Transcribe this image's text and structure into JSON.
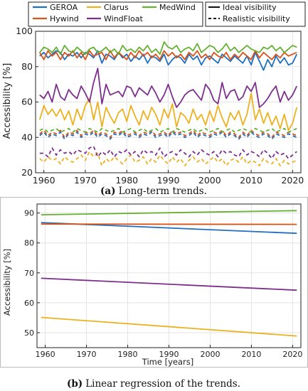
{
  "chart_data": [
    {
      "type": "line",
      "caption_tag": "(a)",
      "caption": "Long-term trends.",
      "ylabel": "Accessibility [%]",
      "xlabel": "",
      "xlim": [
        1958,
        2022
      ],
      "ylim": [
        20,
        100
      ],
      "xticks": [
        1960,
        1970,
        1980,
        1990,
        2000,
        2010,
        2020
      ],
      "yticks": [
        20,
        40,
        60,
        80,
        100
      ],
      "grid": true,
      "legend_position": "top",
      "legend": [
        {
          "name": "GEROA",
          "color": "#1f6fc0"
        },
        {
          "name": "Hywind",
          "color": "#d95319"
        },
        {
          "name": "Clarus",
          "color": "#edb120"
        },
        {
          "name": "WindFloat",
          "color": "#7e2f8e"
        },
        {
          "name": "MedWind",
          "color": "#66b032"
        }
      ],
      "style_legend": [
        {
          "name": "Ideal visibility",
          "dash": "solid"
        },
        {
          "name": "Realistic visibility",
          "dash": "dashed"
        }
      ],
      "x": [
        1959,
        1960,
        1961,
        1962,
        1963,
        1964,
        1965,
        1966,
        1967,
        1968,
        1969,
        1970,
        1971,
        1972,
        1973,
        1974,
        1975,
        1976,
        1977,
        1978,
        1979,
        1980,
        1981,
        1982,
        1983,
        1984,
        1985,
        1986,
        1987,
        1988,
        1989,
        1990,
        1991,
        1992,
        1993,
        1994,
        1995,
        1996,
        1997,
        1998,
        1999,
        2000,
        2001,
        2002,
        2003,
        2004,
        2005,
        2006,
        2007,
        2008,
        2009,
        2010,
        2011,
        2012,
        2013,
        2014,
        2015,
        2016,
        2017,
        2018,
        2019,
        2020,
        2021
      ],
      "series": [
        {
          "name": "GEROA",
          "visibility": "Ideal visibility",
          "color": "#1f6fc0",
          "values": [
            86,
            88,
            85,
            87,
            89,
            88,
            84,
            87,
            86,
            88,
            85,
            88,
            87,
            85,
            89,
            82,
            87,
            86,
            84,
            88,
            85,
            87,
            83,
            86,
            84,
            87,
            82,
            86,
            85,
            83,
            87,
            81,
            84,
            86,
            85,
            82,
            87,
            84,
            86,
            81,
            85,
            86,
            84,
            82,
            87,
            85,
            83,
            86,
            84,
            82,
            86,
            81,
            88,
            83,
            78,
            84,
            80,
            86,
            82,
            85,
            81,
            82,
            87
          ],
          "dash": "solid"
        },
        {
          "name": "Hywind",
          "visibility": "Ideal visibility",
          "color": "#d95319",
          "values": [
            88,
            84,
            89,
            86,
            88,
            84,
            88,
            86,
            89,
            85,
            88,
            84,
            89,
            86,
            87,
            88,
            84,
            89,
            85,
            88,
            86,
            84,
            88,
            85,
            89,
            86,
            88,
            85,
            87,
            84,
            89,
            86,
            88,
            85,
            87,
            84,
            88,
            86,
            89,
            85,
            87,
            84,
            88,
            86,
            85,
            88,
            84,
            87,
            85,
            88,
            86,
            84,
            89,
            85,
            88,
            86,
            84,
            87,
            85,
            88,
            86,
            87,
            88
          ],
          "dash": "solid"
        },
        {
          "name": "Clarus",
          "visibility": "Ideal visibility",
          "color": "#edb120",
          "values": [
            50,
            58,
            53,
            56,
            52,
            56,
            50,
            55,
            47,
            56,
            50,
            58,
            62,
            50,
            60,
            46,
            57,
            52,
            48,
            54,
            56,
            49,
            58,
            52,
            47,
            55,
            50,
            57,
            53,
            47,
            56,
            51,
            59,
            46,
            54,
            52,
            48,
            56,
            50,
            53,
            47,
            55,
            49,
            58,
            51,
            46,
            54,
            50,
            55,
            47,
            53,
            65,
            50,
            56,
            48,
            54,
            47,
            52,
            45,
            53,
            44,
            48,
            57
          ],
          "dash": "solid"
        },
        {
          "name": "WindFloat",
          "visibility": "Ideal visibility",
          "color": "#7e2f8e",
          "values": [
            64,
            62,
            66,
            60,
            70,
            63,
            61,
            67,
            64,
            62,
            69,
            65,
            60,
            71,
            79,
            59,
            70,
            64,
            65,
            66,
            63,
            69,
            68,
            63,
            68,
            66,
            64,
            69,
            65,
            60,
            64,
            70,
            63,
            57,
            60,
            64,
            66,
            67,
            64,
            61,
            70,
            67,
            61,
            59,
            71,
            62,
            66,
            67,
            61,
            63,
            69,
            66,
            71,
            57,
            59,
            62,
            66,
            69,
            60,
            66,
            61,
            64,
            69
          ],
          "dash": "solid"
        },
        {
          "name": "MedWind",
          "visibility": "Ideal visibility",
          "color": "#66b032",
          "values": [
            88,
            91,
            90,
            88,
            91,
            87,
            92,
            89,
            88,
            91,
            89,
            87,
            90,
            91,
            88,
            89,
            91,
            88,
            90,
            87,
            92,
            89,
            90,
            88,
            91,
            89,
            92,
            88,
            90,
            87,
            94,
            91,
            90,
            92,
            88,
            90,
            91,
            89,
            93,
            88,
            90,
            92,
            91,
            88,
            90,
            93,
            89,
            91,
            88,
            90,
            92,
            90,
            89,
            88,
            91,
            90,
            92,
            89,
            91,
            88,
            90,
            92,
            91
          ],
          "dash": "solid"
        },
        {
          "name": "GEROA",
          "visibility": "Realistic visibility",
          "color": "#1f6fc0",
          "values": [
            41,
            43,
            40,
            42,
            41,
            43,
            39,
            42,
            41,
            43,
            40,
            42,
            41,
            43,
            40,
            42,
            41,
            39,
            42,
            41,
            43,
            40,
            41,
            42,
            40,
            42,
            41,
            43,
            40,
            41,
            42,
            40,
            43,
            41,
            42,
            40,
            41,
            43,
            40,
            42,
            41,
            40,
            42,
            41,
            43,
            40,
            42,
            41,
            39,
            42,
            40,
            43,
            41,
            40,
            42,
            41,
            39,
            42,
            41,
            40,
            42,
            41,
            40
          ],
          "dash": "dashed"
        },
        {
          "name": "Hywind",
          "visibility": "Realistic visibility",
          "color": "#d95319",
          "values": [
            42,
            44,
            41,
            43,
            42,
            44,
            40,
            43,
            42,
            44,
            41,
            43,
            42,
            44,
            41,
            43,
            42,
            40,
            43,
            42,
            44,
            41,
            42,
            43,
            41,
            43,
            42,
            44,
            41,
            42,
            43,
            41,
            44,
            42,
            43,
            41,
            42,
            44,
            41,
            43,
            42,
            41,
            43,
            42,
            44,
            41,
            43,
            42,
            40,
            43,
            41,
            44,
            42,
            41,
            43,
            42,
            40,
            43,
            42,
            41,
            43,
            42,
            41
          ],
          "dash": "dashed"
        },
        {
          "name": "Clarus",
          "visibility": "Realistic visibility",
          "color": "#edb120",
          "values": [
            28,
            26,
            29,
            27,
            28,
            25,
            29,
            27,
            26,
            28,
            30,
            27,
            32,
            29,
            31,
            24,
            28,
            26,
            29,
            27,
            25,
            28,
            30,
            26,
            27,
            29,
            25,
            28,
            26,
            30,
            27,
            25,
            29,
            26,
            28,
            24,
            27,
            29,
            26,
            28,
            25,
            27,
            29,
            26,
            28,
            24,
            27,
            28,
            26,
            29,
            25,
            27,
            26,
            24,
            28,
            26,
            25,
            28,
            24,
            27,
            25,
            26,
            27
          ],
          "dash": "dashed"
        },
        {
          "name": "WindFloat",
          "visibility": "Realistic visibility",
          "color": "#7e2f8e",
          "values": [
            31,
            31,
            29,
            34,
            30,
            33,
            31,
            32,
            30,
            33,
            32,
            31,
            34,
            35,
            29,
            32,
            30,
            33,
            29,
            32,
            31,
            33,
            30,
            32,
            29,
            33,
            31,
            32,
            30,
            34,
            29,
            31,
            32,
            30,
            33,
            31,
            29,
            32,
            30,
            33,
            31,
            30,
            32,
            29,
            33,
            31,
            32,
            30,
            29,
            33,
            30,
            32,
            31,
            29,
            33,
            31,
            28,
            32,
            30,
            31,
            28,
            30,
            32
          ],
          "dash": "dashed"
        },
        {
          "name": "MedWind",
          "visibility": "Realistic visibility",
          "color": "#66b032",
          "values": [
            44,
            45,
            43,
            44,
            45,
            43,
            44,
            45,
            43,
            45,
            44,
            43,
            45,
            44,
            43,
            45,
            44,
            43,
            44,
            45,
            43,
            44,
            45,
            43,
            44,
            45,
            43,
            44,
            45,
            43,
            44,
            45,
            43,
            45,
            44,
            43,
            44,
            45,
            43,
            44,
            45,
            43,
            44,
            45,
            43,
            44,
            45,
            43,
            44,
            45,
            44,
            43,
            45,
            44,
            43,
            44,
            45,
            43,
            44,
            45,
            43,
            44,
            45
          ],
          "dash": "dashed"
        }
      ]
    },
    {
      "type": "line",
      "caption_tag": "(b)",
      "caption": "Linear regression of the trends.",
      "ylabel": "Accessibility [%]",
      "xlabel": "Time [years]",
      "xlim": [
        1958,
        2022
      ],
      "ylim": [
        45,
        93
      ],
      "xticks": [
        1960,
        1970,
        1980,
        1990,
        2000,
        2010,
        2020
      ],
      "yticks": [
        50,
        60,
        70,
        80,
        90
      ],
      "grid": true,
      "x": [
        1959,
        2021
      ],
      "series": [
        {
          "name": "GEROA",
          "color": "#1f6fc0",
          "values": [
            86.8,
            83.2
          ]
        },
        {
          "name": "Hywind",
          "color": "#d95319",
          "values": [
            86.3,
            86.2
          ]
        },
        {
          "name": "Clarus",
          "color": "#edb120",
          "values": [
            55.1,
            48.9
          ]
        },
        {
          "name": "WindFloat",
          "color": "#7e2f8e",
          "values": [
            68.2,
            64.2
          ]
        },
        {
          "name": "MedWind",
          "color": "#66b032",
          "values": [
            89.4,
            90.8
          ]
        }
      ]
    }
  ]
}
